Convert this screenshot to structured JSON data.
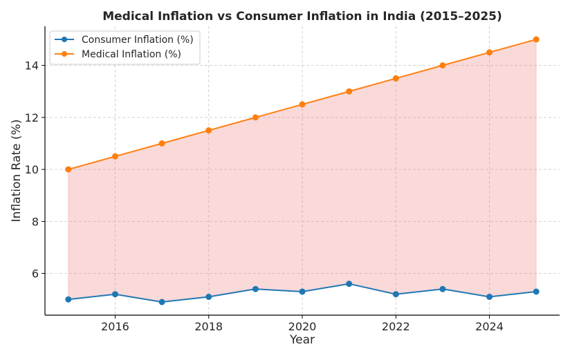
{
  "chart_data": {
    "type": "line",
    "title": "Medical Inflation vs Consumer Inflation in India (2015–2025)",
    "xlabel": "Year",
    "ylabel": "Inflation Rate (%)",
    "x": [
      2015,
      2016,
      2017,
      2018,
      2019,
      2020,
      2021,
      2022,
      2023,
      2024,
      2025
    ],
    "series": [
      {
        "name": "Consumer Inflation (%)",
        "color": "#1f77b4",
        "values": [
          5.0,
          5.2,
          4.9,
          5.1,
          5.4,
          5.3,
          5.6,
          5.2,
          5.4,
          5.1,
          5.3
        ]
      },
      {
        "name": "Medical Inflation (%)",
        "color": "#ff7f0e",
        "values": [
          10.0,
          10.5,
          11.0,
          11.5,
          12.0,
          12.5,
          13.0,
          13.5,
          14.0,
          14.5,
          15.0
        ]
      }
    ],
    "fill_between": {
      "color": "#f08080",
      "opacity": 0.3
    },
    "xlim": [
      2014.5,
      2025.5
    ],
    "ylim": [
      4.395,
      15.505
    ],
    "xticks": [
      2016,
      2018,
      2020,
      2022,
      2024
    ],
    "yticks": [
      6,
      8,
      10,
      12,
      14
    ],
    "grid": true,
    "legend_position": "top-left"
  }
}
